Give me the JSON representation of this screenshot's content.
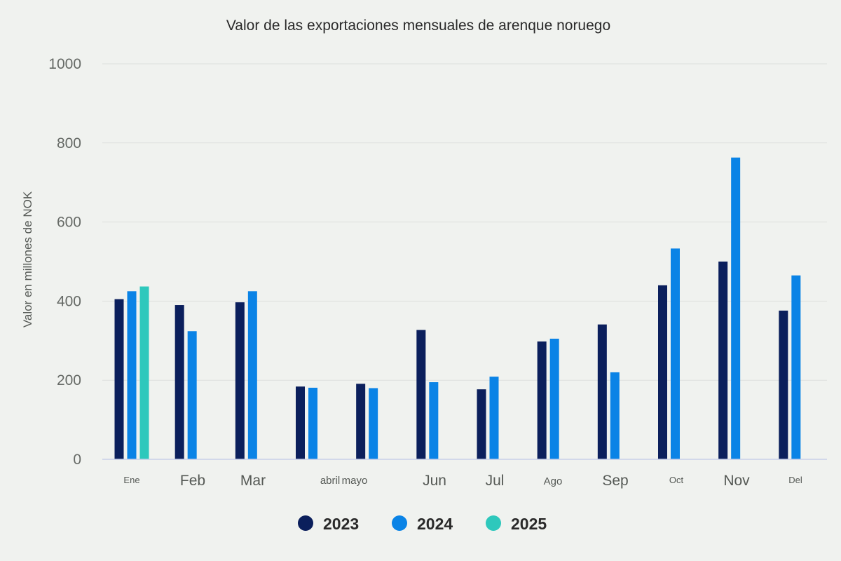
{
  "chart_data": {
    "type": "bar",
    "title": "Valor de las exportaciones mensuales de arenque noruego",
    "xlabel": "",
    "ylabel": "Valor en millones de NOK",
    "ylim": [
      0,
      1000
    ],
    "yticks": [
      0,
      200,
      400,
      600,
      800,
      1000
    ],
    "grid": true,
    "legend_position": "bottom-center",
    "categories": [
      "Ene",
      "Feb",
      "Mar",
      "abril",
      "mayo",
      "Jun",
      "Jul",
      "Ago",
      "Sep",
      "Oct",
      "Nov",
      "Del"
    ],
    "series": [
      {
        "name": "2023",
        "color": "#0b1f5c",
        "values": [
          405,
          390,
          397,
          184,
          191,
          327,
          177,
          298,
          341,
          440,
          500,
          376
        ]
      },
      {
        "name": "2024",
        "color": "#0a83e6",
        "values": [
          425,
          324,
          425,
          181,
          180,
          195,
          209,
          305,
          220,
          533,
          763,
          465
        ]
      },
      {
        "name": "2025",
        "color": "#2ec8bc",
        "values": [
          437,
          null,
          null,
          null,
          null,
          null,
          null,
          null,
          null,
          null,
          null,
          null
        ]
      }
    ]
  }
}
